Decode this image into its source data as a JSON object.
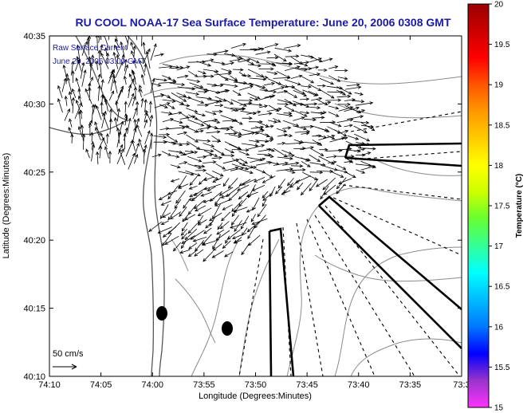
{
  "title": "RU COOL  NOAA-17  Sea Surface Temperature:  June 20, 2006 0308 GMT",
  "overlay": {
    "line1": "Raw Surface Current",
    "line2": "June 20, 2006 03:00 GMT"
  },
  "scale": {
    "label": "50 cm/s"
  },
  "x_axis": {
    "label": "Longitude (Degrees:Minutes)",
    "ticks": [
      "74:10",
      "74:05",
      "74:00",
      "73:55",
      "73:50",
      "73:45",
      "73:40",
      "73:35",
      "73:3"
    ]
  },
  "y_axis": {
    "label": "Latitude (Degrees:Minutes)",
    "ticks": [
      "40:35",
      "40:30",
      "40:25",
      "40:20",
      "40:15",
      "40:10"
    ]
  },
  "colorbar": {
    "label": "Temperature (°C)",
    "ticks": [
      "20",
      "19.5",
      "19",
      "18.5",
      "18",
      "17.5",
      "17",
      "16.5",
      "16",
      "15.5",
      "15"
    ],
    "min": 15,
    "max": 20,
    "colors": [
      "#ff33ff",
      "#9933cc",
      "#0000ff",
      "#0077ff",
      "#00bbff",
      "#00ffff",
      "#33ff99",
      "#66ff33",
      "#ccff00",
      "#ffff00",
      "#ffcc00",
      "#ff9900",
      "#ff5500",
      "#ff0000",
      "#cc0000",
      "#990000"
    ]
  },
  "map": {
    "lon_range": [
      "74:10",
      "73:3"
    ],
    "lat_range": [
      "40:10",
      "40:35"
    ],
    "current_vectors": "dense field of black arrows in upper and central plot area",
    "features": [
      "coastline",
      "bathymetry contours",
      "black sensor markers",
      "dashed radar beam lines",
      "solid outlined wedge polygons"
    ]
  }
}
